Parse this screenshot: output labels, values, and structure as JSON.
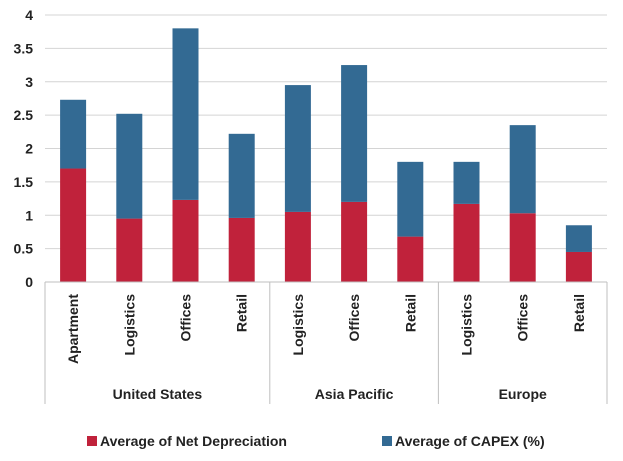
{
  "chart_data": {
    "type": "bar",
    "stacked": true,
    "ylim": [
      0,
      4
    ],
    "yticks": [
      "0",
      "0.5",
      "1",
      "1.5",
      "2",
      "2.5",
      "3",
      "3.5",
      "4"
    ],
    "grid": true,
    "legend_position": "bottom",
    "groups": [
      {
        "name": "United States",
        "categories": [
          "Apartment",
          "Logistics",
          "Offices",
          "Retail"
        ]
      },
      {
        "name": "Asia Pacific",
        "categories": [
          "Logistics",
          "Offices",
          "Retail"
        ]
      },
      {
        "name": "Europe",
        "categories": [
          "Logistics",
          "Offices",
          "Retail"
        ]
      }
    ],
    "series": [
      {
        "name": "Average of Net Depreciation",
        "color": "#c0223b",
        "values": [
          1.7,
          0.95,
          1.23,
          0.96,
          1.05,
          1.2,
          0.68,
          1.17,
          1.03,
          0.45
        ]
      },
      {
        "name": "Average of CAPEX (%)",
        "color": "#336a93",
        "values": [
          1.03,
          1.57,
          2.57,
          1.26,
          1.9,
          2.05,
          1.12,
          0.63,
          1.32,
          0.4
        ]
      }
    ]
  }
}
